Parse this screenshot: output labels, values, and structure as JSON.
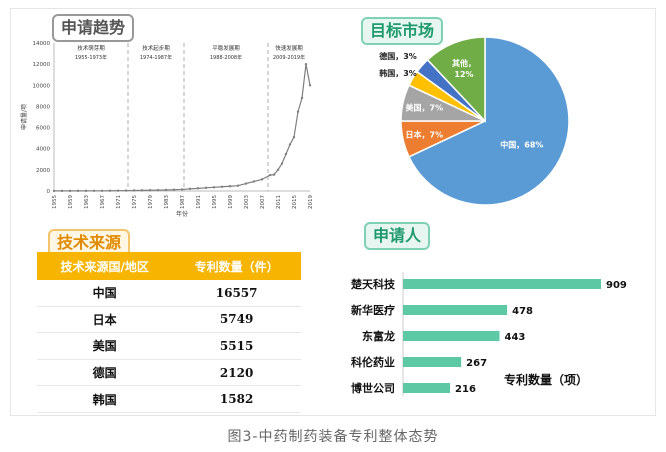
{
  "caption": "图3-中药制药装备专利整体态势",
  "trend": {
    "title": "申请趋势",
    "ylabel": "申请量/项",
    "xlabel": "年份",
    "phases": [
      {
        "name": "技术萌芽期",
        "range": "1955-1973年"
      },
      {
        "name": "技术起步期",
        "range": "1974-1987年"
      },
      {
        "name": "平稳发展期",
        "range": "1988-2008年"
      },
      {
        "name": "快速发展期",
        "range": "2009-2019年"
      }
    ]
  },
  "market": {
    "title": "目标市场"
  },
  "source": {
    "title": "技术来源",
    "headers": [
      "技术来源国/地区",
      "专利数量（件）"
    ],
    "rows": [
      {
        "region": "中国",
        "count": "16557"
      },
      {
        "region": "日本",
        "count": "5749"
      },
      {
        "region": "美国",
        "count": "5515"
      },
      {
        "region": "德国",
        "count": "2120"
      },
      {
        "region": "韩国",
        "count": "1582"
      }
    ]
  },
  "applicants": {
    "title": "申请人",
    "axis_label": "专利数量（项）"
  },
  "colors": {
    "line": "#7f7f7f",
    "pie_china": "#5b9bd5",
    "pie_japan": "#ed7d31",
    "pie_usa": "#a5a5a5",
    "pie_korea": "#ffc000",
    "pie_germany": "#4472c4",
    "pie_other": "#70ad47",
    "bar": "#5cc8a4"
  },
  "chart_data": [
    {
      "type": "line",
      "title": "申请趋势",
      "xlabel": "年份",
      "ylabel": "申请量/项",
      "x": [
        1955,
        1957,
        1959,
        1961,
        1963,
        1965,
        1967,
        1969,
        1971,
        1973,
        1975,
        1977,
        1979,
        1981,
        1983,
        1985,
        1987,
        1989,
        1991,
        1993,
        1995,
        1997,
        1999,
        2001,
        2003,
        2005,
        2007,
        2009,
        2010,
        2011,
        2012,
        2013,
        2014,
        2015,
        2016,
        2017,
        2018,
        2019
      ],
      "y": [
        10,
        10,
        10,
        15,
        15,
        20,
        20,
        25,
        30,
        40,
        50,
        60,
        70,
        80,
        100,
        120,
        150,
        200,
        250,
        300,
        350,
        400,
        450,
        500,
        700,
        900,
        1100,
        1500,
        1550,
        2000,
        2600,
        3500,
        4400,
        5100,
        7500,
        8800,
        12000,
        10000
      ],
      "xticks": [
        "1955",
        "1959",
        "1963",
        "1967",
        "1971",
        "1975",
        "1979",
        "1983",
        "1987",
        "1991",
        "1995",
        "1999",
        "2003",
        "2007",
        "2011",
        "2015",
        "2019"
      ],
      "yticks": [
        0,
        2000,
        4000,
        6000,
        8000,
        10000,
        12000,
        14000
      ],
      "ylim": [
        0,
        14000
      ],
      "xlim": [
        1955,
        2019
      ],
      "phase_dividers": [
        1973.5,
        1987.5,
        2008.5
      ]
    },
    {
      "type": "pie",
      "title": "目标市场",
      "labels": [
        "中国",
        "日本",
        "美国",
        "韩国",
        "德国",
        "其他"
      ],
      "values": [
        68,
        7,
        7,
        3,
        3,
        12
      ],
      "value_labels": [
        "68%",
        "7%",
        "7%",
        "3%",
        "3%",
        "12%"
      ]
    },
    {
      "type": "bar",
      "title": "申请人",
      "xlabel": "专利数量（项）",
      "categories": [
        "楚天科技",
        "新华医疗",
        "东富龙",
        "科伦药业",
        "博世公司"
      ],
      "values": [
        909,
        478,
        443,
        267,
        216
      ],
      "value_labels": [
        "909",
        "478",
        "443",
        "267",
        "216"
      ]
    }
  ]
}
